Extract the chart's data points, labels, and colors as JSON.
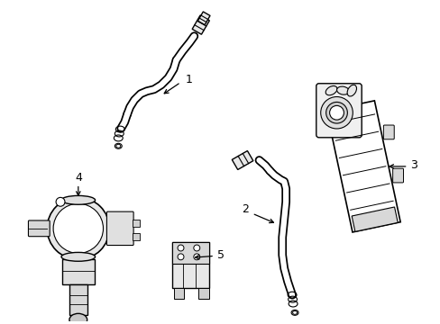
{
  "bg_color": "#ffffff",
  "line_color": "#000000",
  "lw": 1.0,
  "fig_w": 4.89,
  "fig_h": 3.6,
  "dpi": 100
}
